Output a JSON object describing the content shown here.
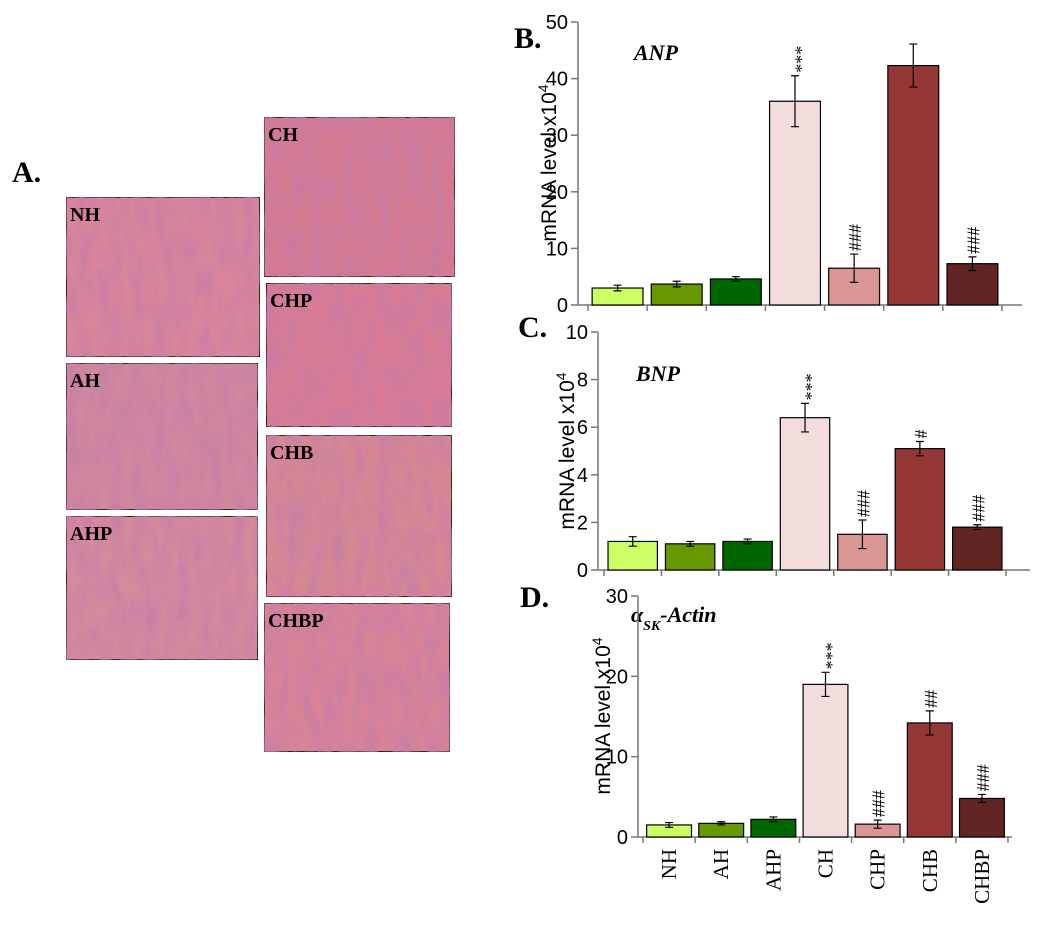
{
  "panel_a": {
    "label": "A.",
    "images": [
      "NH",
      "AH",
      "AHP",
      "CH",
      "CHP",
      "CHB",
      "CHBP"
    ]
  },
  "chart_data": [
    {
      "type": "bar",
      "panel_label": "B.",
      "title": "ANP",
      "y_label": "mRNA level x10",
      "y_label_superscript": "4",
      "values": [
        3.0,
        3.7,
        4.6,
        36.0,
        6.5,
        42.3,
        7.3
      ],
      "errors": [
        0.5,
        0.5,
        0.4,
        4.5,
        2.5,
        3.8,
        1.2
      ],
      "annotations": [
        null,
        null,
        null,
        "***",
        "###",
        null,
        "###"
      ],
      "colors": [
        "#ccff66",
        "#669900",
        "#006600",
        "#f2dcdc",
        "#d99694",
        "#953735",
        "#632523"
      ],
      "ylim": [
        0,
        50
      ],
      "yticks": [
        0,
        10,
        20,
        30,
        40,
        50
      ]
    },
    {
      "type": "bar",
      "panel_label": "C.",
      "title": "BNP",
      "y_label": "mRNA level x10",
      "y_label_superscript": "4",
      "values": [
        1.2,
        1.1,
        1.2,
        6.4,
        1.5,
        5.1,
        1.8
      ],
      "errors": [
        0.2,
        0.1,
        0.1,
        0.6,
        0.6,
        0.3,
        0.1
      ],
      "annotations": [
        null,
        null,
        null,
        "***",
        "###",
        "#",
        "###"
      ],
      "colors": [
        "#ccff66",
        "#669900",
        "#006600",
        "#f2dcdc",
        "#d99694",
        "#953735",
        "#632523"
      ],
      "ylim": [
        0,
        10
      ],
      "yticks": [
        0,
        2,
        4,
        6,
        8,
        10
      ]
    },
    {
      "type": "bar",
      "panel_label": "D.",
      "title": "α",
      "title_subscript": "SK",
      "title_suffix": "-Actin",
      "y_label": "mRNA level x10",
      "y_label_superscript": "4",
      "categories": [
        "NH",
        "AH",
        "AHP",
        "CH",
        "CHP",
        "CHB",
        "CHBP"
      ],
      "values": [
        1.5,
        1.7,
        2.2,
        19.0,
        1.6,
        14.2,
        4.8
      ],
      "errors": [
        0.3,
        0.2,
        0.3,
        1.5,
        0.5,
        1.5,
        0.5
      ],
      "annotations": [
        null,
        null,
        null,
        "***",
        "###",
        "##",
        "###"
      ],
      "colors": [
        "#ccff66",
        "#669900",
        "#006600",
        "#f2dcdc",
        "#d99694",
        "#953735",
        "#632523"
      ],
      "ylim": [
        0,
        30
      ],
      "yticks": [
        0,
        10,
        20,
        30
      ]
    }
  ]
}
